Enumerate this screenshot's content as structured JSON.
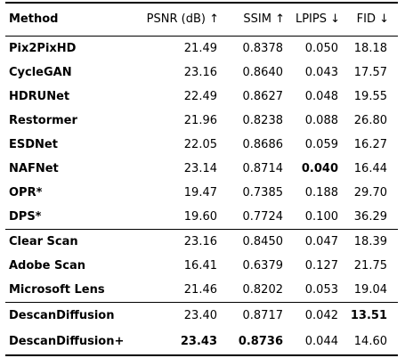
{
  "table": {
    "headers": {
      "method": "Method",
      "psnr": "PSNR (dB) ↑",
      "ssim": "SSIM ↑",
      "lpips": "LPIPS ↓",
      "fid": "FID ↓"
    },
    "groups": [
      {
        "rows": [
          {
            "method": "Pix2PixHD",
            "psnr": "21.49",
            "ssim": "0.8378",
            "lpips": "0.050",
            "fid": "18.18",
            "bold": []
          },
          {
            "method": "CycleGAN",
            "psnr": "23.16",
            "ssim": "0.8640",
            "lpips": "0.043",
            "fid": "17.57",
            "bold": []
          },
          {
            "method": "HDRUNet",
            "psnr": "22.49",
            "ssim": "0.8627",
            "lpips": "0.048",
            "fid": "19.55",
            "bold": []
          },
          {
            "method": "Restormer",
            "psnr": "21.96",
            "ssim": "0.8238",
            "lpips": "0.088",
            "fid": "26.80",
            "bold": []
          },
          {
            "method": "ESDNet",
            "psnr": "22.05",
            "ssim": "0.8686",
            "lpips": "0.059",
            "fid": "16.27",
            "bold": []
          },
          {
            "method": "NAFNet",
            "psnr": "23.14",
            "ssim": "0.8714",
            "lpips": "0.040",
            "fid": "16.44",
            "bold": [
              "lpips"
            ]
          },
          {
            "method": "OPR*",
            "psnr": "19.47",
            "ssim": "0.7385",
            "lpips": "0.188",
            "fid": "29.70",
            "bold": []
          },
          {
            "method": "DPS*",
            "psnr": "19.60",
            "ssim": "0.7724",
            "lpips": "0.100",
            "fid": "36.29",
            "bold": []
          }
        ]
      },
      {
        "rows": [
          {
            "method": "Clear Scan",
            "psnr": "23.16",
            "ssim": "0.8450",
            "lpips": "0.047",
            "fid": "18.39",
            "bold": []
          },
          {
            "method": "Adobe Scan",
            "psnr": "16.41",
            "ssim": "0.6379",
            "lpips": "0.127",
            "fid": "21.75",
            "bold": []
          },
          {
            "method": "Microsoft Lens",
            "psnr": "21.46",
            "ssim": "0.8202",
            "lpips": "0.053",
            "fid": "19.04",
            "bold": []
          }
        ]
      },
      {
        "rows": [
          {
            "method": "DescanDiffusion",
            "psnr": "23.40",
            "ssim": "0.8717",
            "lpips": "0.042",
            "fid": "13.51",
            "bold": [
              "fid"
            ]
          },
          {
            "method": "DescanDiffusion+",
            "psnr": "23.43",
            "ssim": "0.8736",
            "lpips": "0.044",
            "fid": "14.60",
            "bold": [
              "psnr",
              "ssim"
            ]
          }
        ]
      }
    ]
  }
}
